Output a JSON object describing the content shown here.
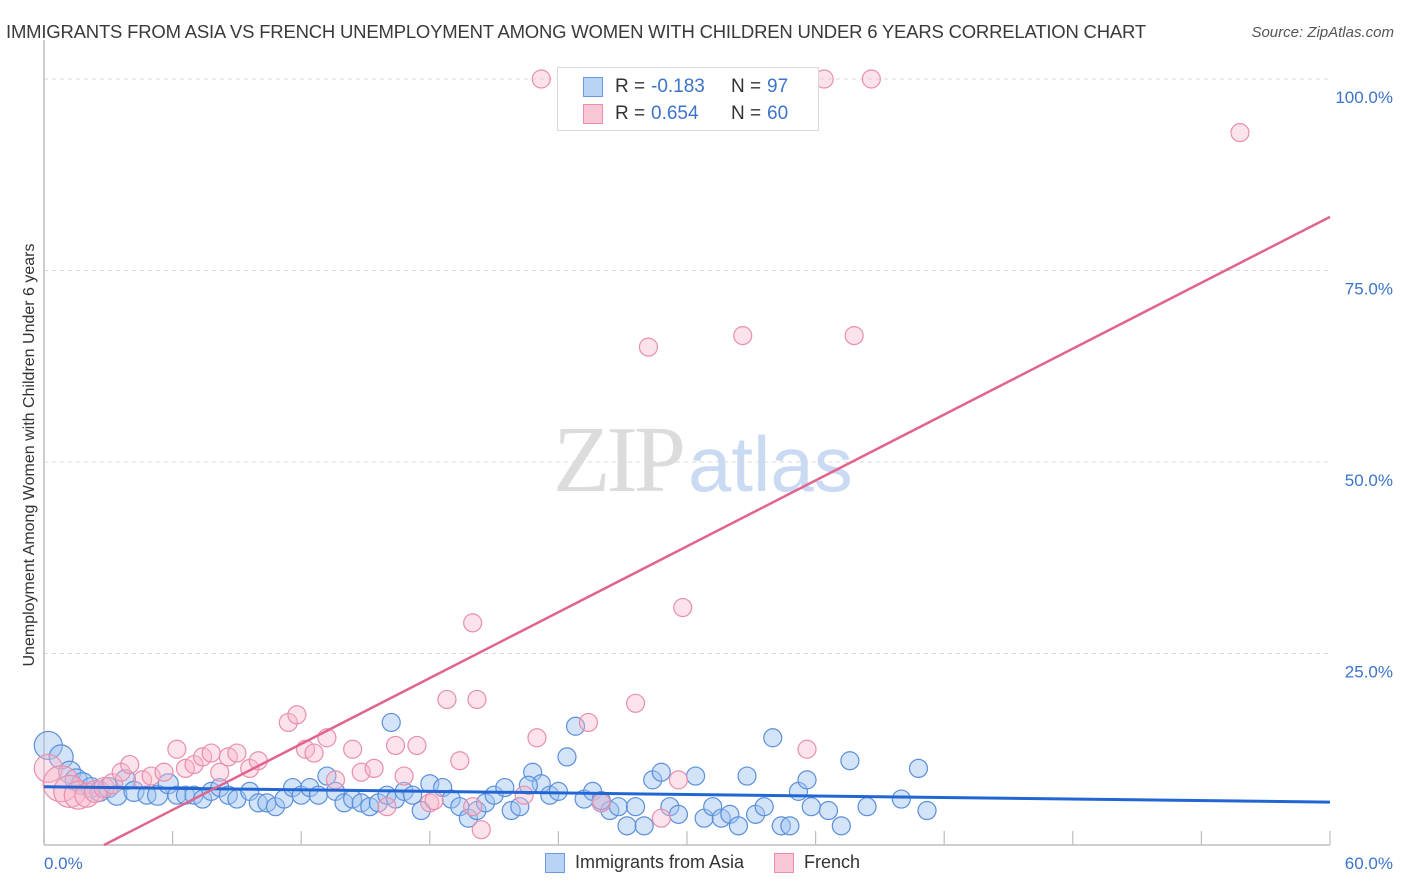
{
  "header": {
    "title": "IMMIGRANTS FROM ASIA VS FRENCH UNEMPLOYMENT AMONG WOMEN WITH CHILDREN UNDER 6 YEARS CORRELATION CHART",
    "source": "Source: ZipAtlas.com"
  },
  "watermark": {
    "zip": "ZIP",
    "atlas": "atlas"
  },
  "legend": {
    "rows": [
      {
        "series": "Immigrants from Asia",
        "r_label": "R =",
        "r_value": "-0.183",
        "n_label": "N =",
        "n_value": "97",
        "fill": "#b9d3f5",
        "stroke": "#6b9be0"
      },
      {
        "series": "French",
        "r_label": "R =",
        "r_value": "0.654",
        "n_label": "N =",
        "n_value": "60",
        "fill": "#f9c6d5",
        "stroke": "#e88fab"
      }
    ]
  },
  "bottom_legend": [
    {
      "label": "Immigrants from Asia",
      "fill": "#b9d3f5",
      "stroke": "#6b9be0"
    },
    {
      "label": "French",
      "fill": "#f9c6d5",
      "stroke": "#e88fab"
    }
  ],
  "axes": {
    "y_title": "Unemployment Among Women with Children Under 6 years",
    "x_min_label": "0.0%",
    "x_max_label": "60.0%",
    "y_ticks": [
      "100.0%",
      "75.0%",
      "50.0%",
      "25.0%"
    ]
  },
  "colors": {
    "blue_fill": "rgba(160,196,240,0.45)",
    "blue_stroke": "#5b8fdc",
    "blue_line": "#2266d4",
    "pink_fill": "rgba(247,182,202,0.40)",
    "pink_stroke": "#e88fab",
    "pink_line": "#e0648e",
    "axis_label": "#3b74c9",
    "grid": "#d8d8d8"
  },
  "chart_data": {
    "type": "scatter",
    "title": "IMMIGRANTS FROM ASIA VS FRENCH UNEMPLOYMENT AMONG WOMEN WITH CHILDREN UNDER 6 YEARS CORRELATION CHART",
    "xlabel": "",
    "ylabel": "Unemployment Among Women with Children Under 6 years",
    "xlim": [
      0,
      60
    ],
    "ylim": [
      0,
      100
    ],
    "x_tick_labels": [
      "0.0%",
      "60.0%"
    ],
    "y_tick_labels": [
      "25.0%",
      "50.0%",
      "75.0%",
      "100.0%"
    ],
    "grid": "horizontal dashed at 25/50/75/100",
    "legend_position": "top-center and bottom",
    "series": [
      {
        "name": "Immigrants from Asia",
        "R": -0.183,
        "N": 97,
        "trend": {
          "x": [
            0,
            60
          ],
          "y": [
            7.6,
            5.6
          ]
        },
        "points": [
          [
            0.2,
            13.0,
            14
          ],
          [
            0.8,
            11.5,
            12
          ],
          [
            1.2,
            9.5,
            11
          ],
          [
            1.5,
            8.5,
            11
          ],
          [
            1.8,
            8.0,
            11
          ],
          [
            2.2,
            7.5,
            10
          ],
          [
            2.6,
            7.0,
            10
          ],
          [
            3.0,
            7.5,
            10
          ],
          [
            3.4,
            6.5,
            10
          ],
          [
            3.8,
            8.5,
            10
          ],
          [
            4.2,
            7.0,
            10
          ],
          [
            4.8,
            6.5,
            9
          ],
          [
            5.3,
            6.5,
            10
          ],
          [
            5.8,
            8.0,
            10
          ],
          [
            6.2,
            6.5,
            9
          ],
          [
            6.6,
            6.5,
            9
          ],
          [
            7.0,
            6.5,
            9
          ],
          [
            7.4,
            6.0,
            9
          ],
          [
            7.8,
            7.0,
            9
          ],
          [
            8.2,
            7.5,
            9
          ],
          [
            8.6,
            6.5,
            9
          ],
          [
            9.0,
            6.0,
            9
          ],
          [
            9.6,
            7.0,
            9
          ],
          [
            10.0,
            5.5,
            9
          ],
          [
            10.4,
            5.5,
            9
          ],
          [
            10.8,
            5.0,
            9
          ],
          [
            11.2,
            6.0,
            9
          ],
          [
            11.6,
            7.5,
            9
          ],
          [
            12.0,
            6.5,
            9
          ],
          [
            12.4,
            7.5,
            9
          ],
          [
            12.8,
            6.5,
            9
          ],
          [
            13.2,
            9.0,
            9
          ],
          [
            13.6,
            7.0,
            9
          ],
          [
            14.0,
            5.5,
            9
          ],
          [
            14.4,
            6.0,
            9
          ],
          [
            14.8,
            5.5,
            9
          ],
          [
            15.2,
            5.0,
            9
          ],
          [
            15.6,
            5.5,
            9
          ],
          [
            16.0,
            6.5,
            9
          ],
          [
            16.4,
            6.0,
            9
          ],
          [
            16.8,
            7.0,
            9
          ],
          [
            17.2,
            6.5,
            9
          ],
          [
            17.6,
            4.5,
            9
          ],
          [
            18.0,
            8.0,
            9
          ],
          [
            18.6,
            7.5,
            9
          ],
          [
            19.0,
            6.0,
            9
          ],
          [
            19.4,
            5.0,
            9
          ],
          [
            19.8,
            3.5,
            9
          ],
          [
            20.2,
            4.5,
            9
          ],
          [
            20.6,
            5.5,
            9
          ],
          [
            21.0,
            6.5,
            9
          ],
          [
            21.5,
            7.5,
            9
          ],
          [
            21.8,
            4.5,
            9
          ],
          [
            22.2,
            5.0,
            9
          ],
          [
            22.8,
            9.5,
            9
          ],
          [
            23.2,
            8.0,
            9
          ],
          [
            23.6,
            6.5,
            9
          ],
          [
            24.0,
            7.0,
            9
          ],
          [
            24.4,
            11.5,
            9
          ],
          [
            24.8,
            15.5,
            9
          ],
          [
            25.2,
            6.0,
            9
          ],
          [
            25.6,
            7.0,
            9
          ],
          [
            26.0,
            5.5,
            9
          ],
          [
            26.4,
            4.5,
            9
          ],
          [
            26.8,
            5.0,
            9
          ],
          [
            27.2,
            2.5,
            9
          ],
          [
            27.6,
            5.0,
            9
          ],
          [
            28.0,
            2.5,
            9
          ],
          [
            28.4,
            8.5,
            9
          ],
          [
            28.8,
            9.5,
            9
          ],
          [
            29.2,
            5.0,
            9
          ],
          [
            29.6,
            4.0,
            9
          ],
          [
            30.4,
            9.0,
            9
          ],
          [
            30.8,
            3.5,
            9
          ],
          [
            31.2,
            5.0,
            9
          ],
          [
            31.6,
            3.5,
            9
          ],
          [
            32.0,
            4.0,
            9
          ],
          [
            32.4,
            2.5,
            9
          ],
          [
            32.8,
            9.0,
            9
          ],
          [
            33.2,
            4.0,
            9
          ],
          [
            33.6,
            5.0,
            9
          ],
          [
            34.0,
            14.0,
            9
          ],
          [
            34.4,
            2.5,
            9
          ],
          [
            34.8,
            2.5,
            9
          ],
          [
            35.2,
            7.0,
            9
          ],
          [
            35.6,
            8.5,
            9
          ],
          [
            35.8,
            5.0,
            9
          ],
          [
            36.6,
            4.5,
            9
          ],
          [
            37.2,
            2.5,
            9
          ],
          [
            37.6,
            11.0,
            9
          ],
          [
            38.4,
            5.0,
            9
          ],
          [
            40.0,
            6.0,
            9
          ],
          [
            40.8,
            10.0,
            9
          ],
          [
            41.2,
            4.5,
            9
          ],
          [
            16.2,
            16.0,
            9
          ],
          [
            22.6,
            7.8,
            9
          ],
          [
            26.0,
            5.8,
            9
          ]
        ]
      },
      {
        "name": "French",
        "R": 0.654,
        "N": 60,
        "trend": {
          "x": [
            2.8,
            60
          ],
          "y": [
            0,
            82
          ]
        },
        "points": [
          [
            0.2,
            10.0,
            14
          ],
          [
            0.8,
            8.0,
            18
          ],
          [
            1.2,
            7.0,
            16
          ],
          [
            1.6,
            6.5,
            14
          ],
          [
            2.0,
            6.5,
            12
          ],
          [
            2.4,
            7.0,
            11
          ],
          [
            2.8,
            7.5,
            10
          ],
          [
            3.2,
            8.0,
            10
          ],
          [
            3.6,
            9.5,
            9
          ],
          [
            4.0,
            10.5,
            9
          ],
          [
            4.6,
            8.5,
            9
          ],
          [
            5.0,
            9.0,
            9
          ],
          [
            5.6,
            9.5,
            9
          ],
          [
            6.2,
            12.5,
            9
          ],
          [
            6.6,
            10.0,
            9
          ],
          [
            7.0,
            10.5,
            9
          ],
          [
            7.4,
            11.5,
            9
          ],
          [
            7.8,
            12.0,
            9
          ],
          [
            8.2,
            9.5,
            9
          ],
          [
            8.6,
            11.5,
            9
          ],
          [
            9.0,
            12.0,
            9
          ],
          [
            9.6,
            10.0,
            9
          ],
          [
            10.0,
            11.0,
            9
          ],
          [
            11.4,
            16.0,
            9
          ],
          [
            11.8,
            17.0,
            9
          ],
          [
            12.2,
            12.5,
            9
          ],
          [
            12.6,
            12.0,
            9
          ],
          [
            13.2,
            14.0,
            9
          ],
          [
            13.6,
            8.5,
            9
          ],
          [
            14.4,
            12.5,
            9
          ],
          [
            14.8,
            9.5,
            9
          ],
          [
            15.4,
            10.0,
            9
          ],
          [
            16.0,
            5.0,
            9
          ],
          [
            16.4,
            13.0,
            9
          ],
          [
            16.8,
            9.0,
            9
          ],
          [
            17.4,
            13.0,
            9
          ],
          [
            18.0,
            5.5,
            9
          ],
          [
            18.8,
            19.0,
            9
          ],
          [
            19.4,
            11.0,
            9
          ],
          [
            20.0,
            5.0,
            9
          ],
          [
            20.2,
            19.0,
            9
          ],
          [
            20.4,
            2.0,
            9
          ],
          [
            20.0,
            29.0,
            9
          ],
          [
            22.4,
            6.5,
            9
          ],
          [
            23.0,
            14.0,
            9
          ],
          [
            23.2,
            100.0,
            9
          ],
          [
            25.4,
            16.0,
            9
          ],
          [
            26.0,
            5.5,
            9
          ],
          [
            27.6,
            18.5,
            9
          ],
          [
            28.2,
            65.0,
            9
          ],
          [
            28.8,
            3.5,
            9
          ],
          [
            29.6,
            8.5,
            9
          ],
          [
            29.8,
            31.0,
            9
          ],
          [
            32.6,
            66.5,
            9
          ],
          [
            35.6,
            12.5,
            9
          ],
          [
            36.4,
            100.0,
            9
          ],
          [
            37.8,
            66.5,
            9
          ],
          [
            38.6,
            100.0,
            9
          ],
          [
            55.8,
            93.0,
            9
          ],
          [
            18.2,
            5.8,
            9
          ]
        ]
      }
    ]
  }
}
